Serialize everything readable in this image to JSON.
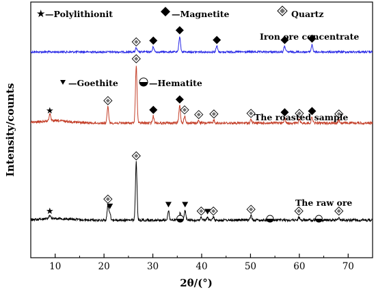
{
  "chart_data": {
    "type": "line",
    "xlabel": "2θ/(°)",
    "ylabel": "Intensity/counts",
    "xlim": [
      5,
      75
    ],
    "x_ticks": [
      10,
      20,
      30,
      40,
      50,
      60,
      70
    ],
    "legend": {
      "polylithionite": "—Polylithionit",
      "magnetite": "—Magnetite",
      "quartz": "Quartz",
      "goethite": "—Goethite",
      "hematite": "—Hematite"
    },
    "series": [
      {
        "label": "Iron ore concentrate",
        "color": "#2626e6",
        "baseline": 0,
        "peaks": [
          [
            26.6,
            6
          ],
          [
            30.1,
            8
          ],
          [
            35.5,
            24
          ],
          [
            43.1,
            9
          ],
          [
            57.0,
            9
          ],
          [
            62.6,
            11
          ]
        ],
        "markers": [
          {
            "symbol": "quartz",
            "x": 26.6
          },
          {
            "symbol": "magnetite",
            "x": 30.1
          },
          {
            "symbol": "magnetite",
            "x": 35.5
          },
          {
            "symbol": "magnetite",
            "x": 43.1
          },
          {
            "symbol": "magnetite",
            "x": 57.0
          },
          {
            "symbol": "magnetite",
            "x": 62.6
          }
        ]
      },
      {
        "label": "The roasted sample",
        "color": "#c4402a",
        "baseline": 0,
        "peaks": [
          [
            8.9,
            12
          ],
          [
            20.8,
            28
          ],
          [
            26.6,
            100
          ],
          [
            30.1,
            12
          ],
          [
            35.5,
            30
          ],
          [
            36.5,
            12
          ],
          [
            39.4,
            4
          ],
          [
            42.5,
            5
          ],
          [
            50.1,
            6
          ],
          [
            57.0,
            8
          ],
          [
            60.0,
            6
          ],
          [
            62.6,
            10
          ],
          [
            68.1,
            5
          ]
        ],
        "markers": [
          {
            "symbol": "polylithionite",
            "x": 8.9
          },
          {
            "symbol": "quartz",
            "x": 20.8
          },
          {
            "symbol": "quartz",
            "x": 26.6
          },
          {
            "symbol": "magnetite",
            "x": 30.1
          },
          {
            "symbol": "magnetite",
            "x": 35.5
          },
          {
            "symbol": "quartz",
            "x": 36.5
          },
          {
            "symbol": "quartz",
            "x": 39.4
          },
          {
            "symbol": "quartz",
            "x": 42.5
          },
          {
            "symbol": "quartz",
            "x": 50.1
          },
          {
            "symbol": "magnetite",
            "x": 57.0
          },
          {
            "symbol": "quartz",
            "x": 60.0
          },
          {
            "symbol": "magnetite",
            "x": 62.6
          },
          {
            "symbol": "quartz",
            "x": 68.1
          }
        ]
      },
      {
        "label": "The raw ore",
        "color": "#000000",
        "baseline": 0,
        "peaks": [
          [
            8.9,
            6
          ],
          [
            20.8,
            25
          ],
          [
            21.2,
            12
          ],
          [
            26.6,
            100
          ],
          [
            33.2,
            16
          ],
          [
            35.6,
            12
          ],
          [
            36.6,
            16
          ],
          [
            39.9,
            5
          ],
          [
            41.2,
            4
          ],
          [
            42.4,
            5
          ],
          [
            50.1,
            8
          ],
          [
            54.0,
            5
          ],
          [
            59.9,
            5
          ],
          [
            64.0,
            4
          ],
          [
            68.1,
            5
          ]
        ],
        "markers": [
          {
            "symbol": "polylithionite",
            "x": 8.9
          },
          {
            "symbol": "quartz",
            "x": 20.8
          },
          {
            "symbol": "goethite",
            "x": 21.2
          },
          {
            "symbol": "quartz",
            "x": 26.6
          },
          {
            "symbol": "goethite",
            "x": 33.2
          },
          {
            "symbol": "hematite",
            "x": 35.6
          },
          {
            "symbol": "goethite",
            "x": 36.6
          },
          {
            "symbol": "quartz",
            "x": 39.9
          },
          {
            "symbol": "goethite",
            "x": 41.2
          },
          {
            "symbol": "quartz",
            "x": 42.4
          },
          {
            "symbol": "quartz",
            "x": 50.1
          },
          {
            "symbol": "hematite",
            "x": 54.0
          },
          {
            "symbol": "quartz",
            "x": 59.9
          },
          {
            "symbol": "hematite",
            "x": 64.0
          },
          {
            "symbol": "quartz",
            "x": 68.1
          }
        ]
      }
    ]
  }
}
